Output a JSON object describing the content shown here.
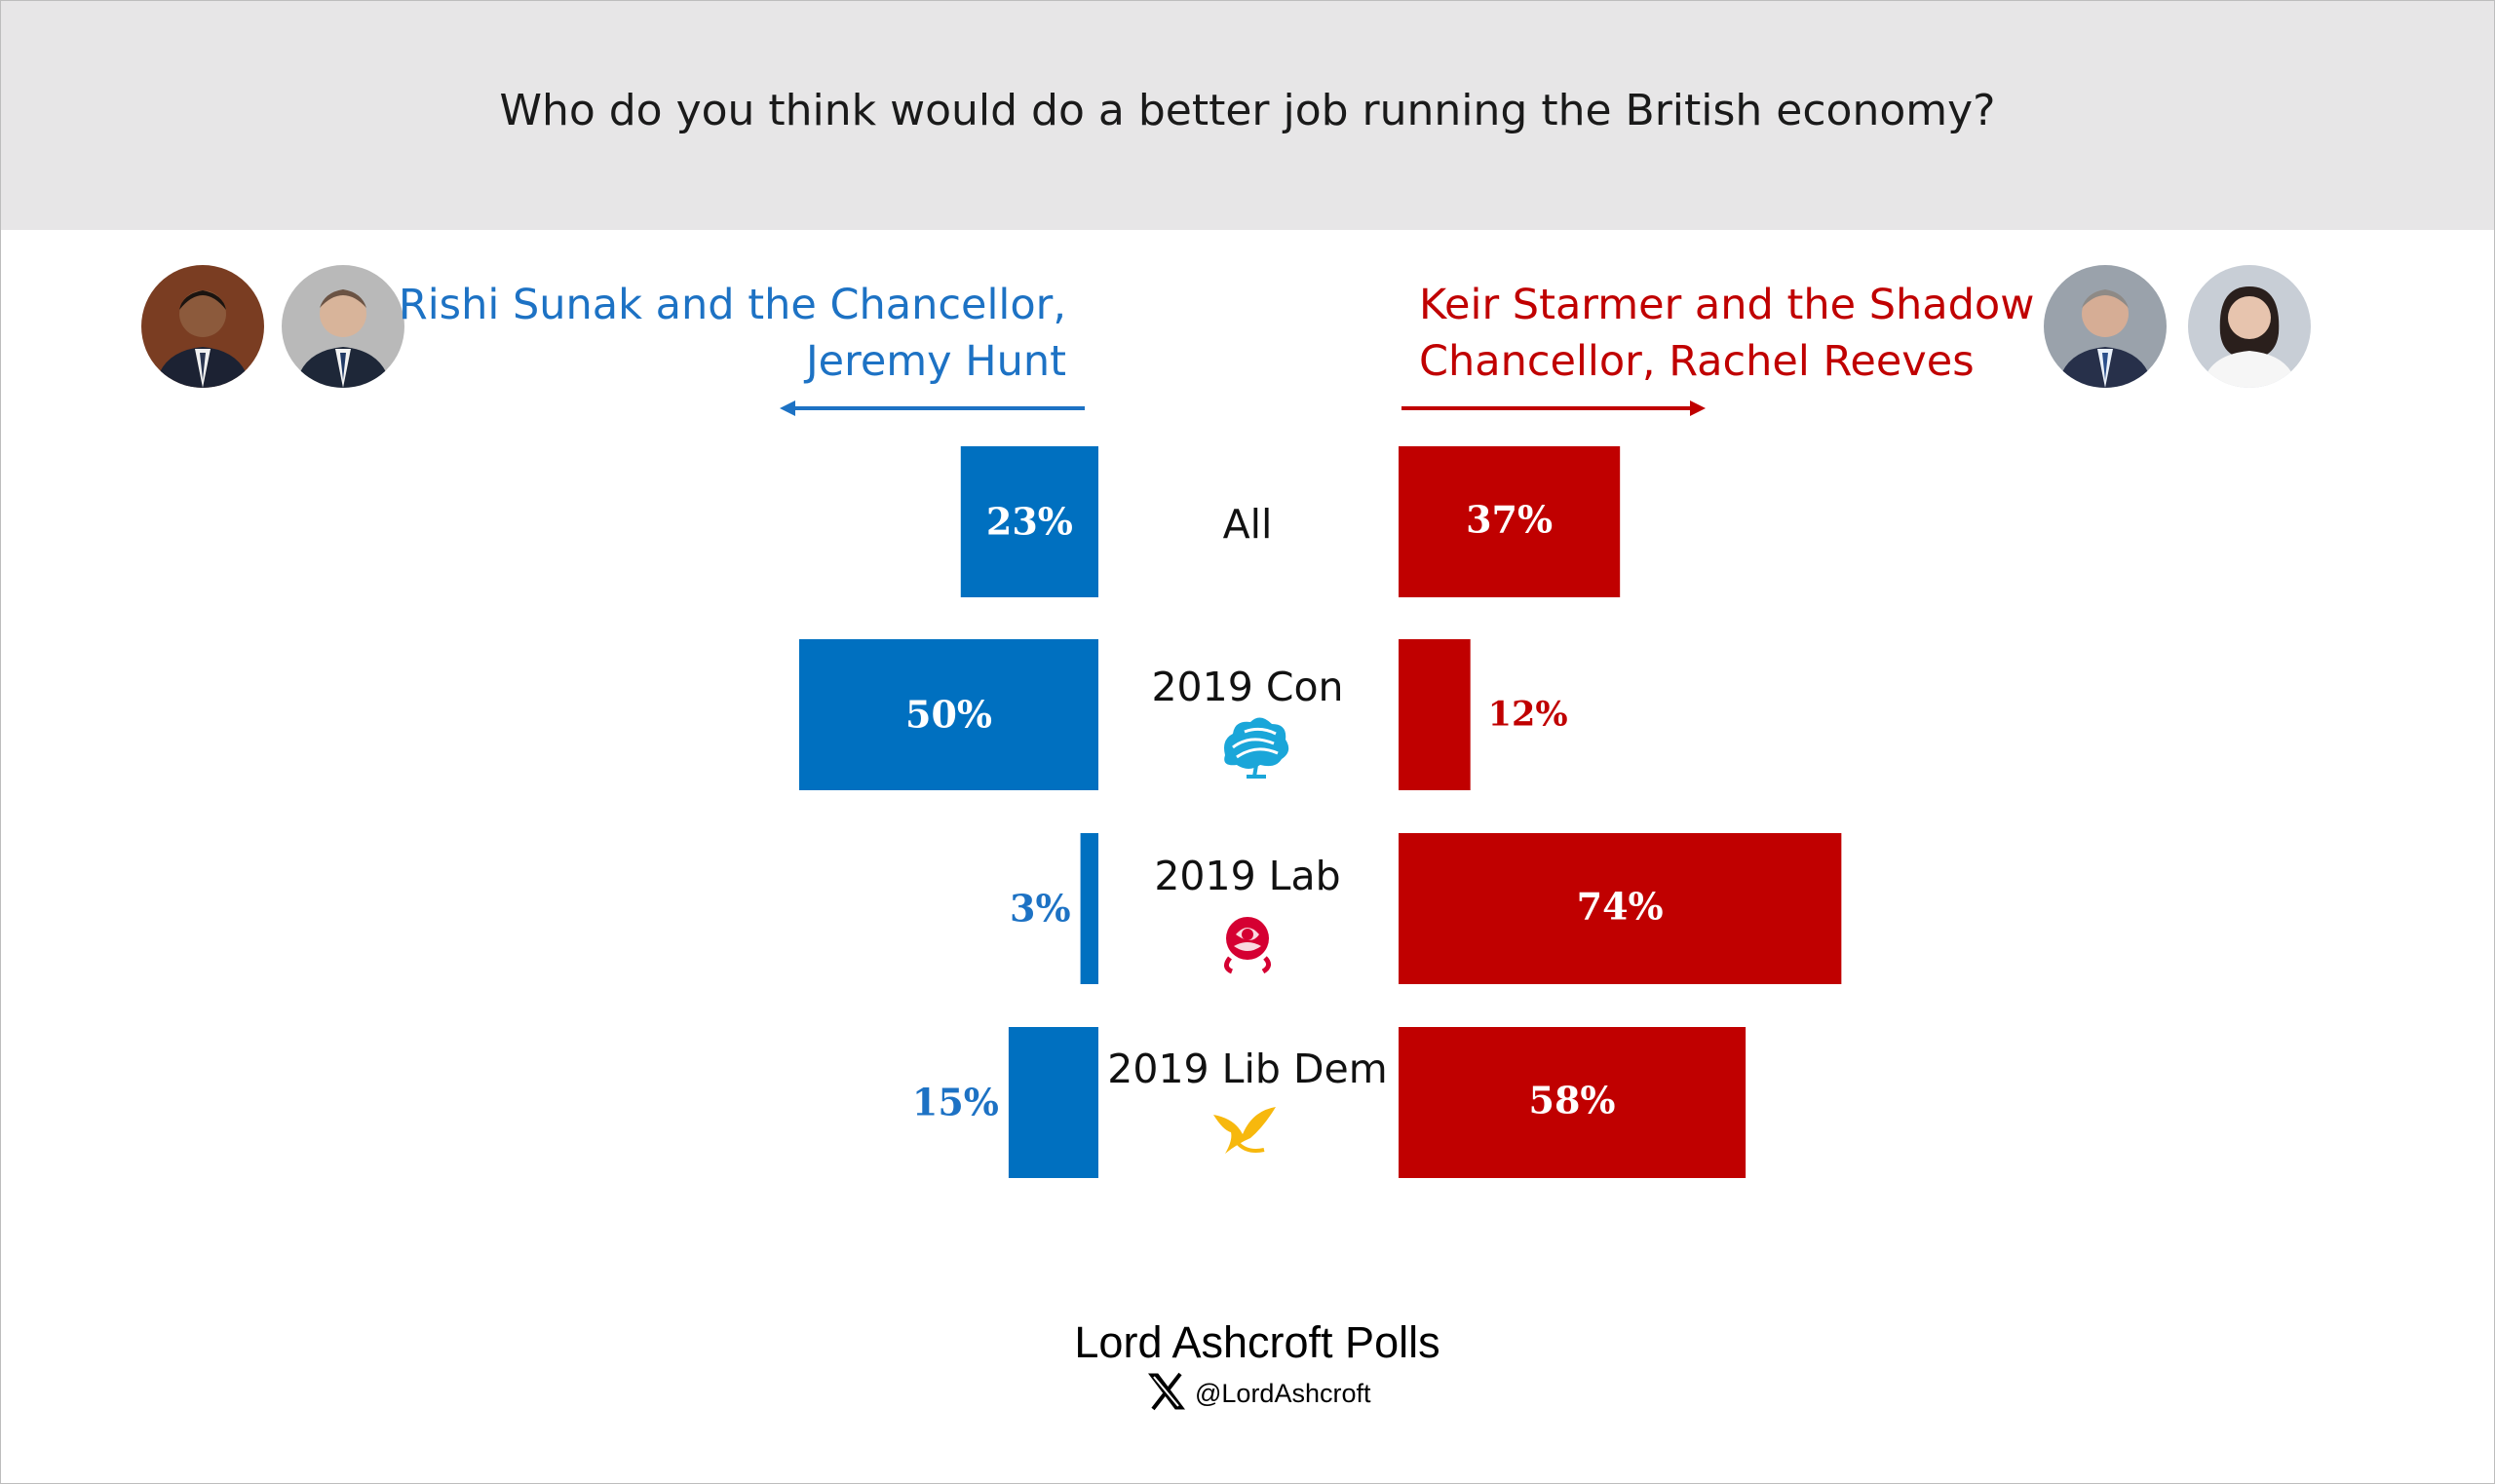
{
  "question": "Who do you think would do a better job running the British economy?",
  "left_label": {
    "line1": "Rishi Sunak and the Chancellor,",
    "line2": "Jeremy Hunt",
    "color": "#1d72c4"
  },
  "right_label": {
    "line1": "Keir Starmer and the Shadow",
    "line2": "Chancellor, Rachel Reeves",
    "color": "#c00000"
  },
  "portraits": {
    "left": [
      "avatar-rishi-sunak",
      "avatar-jeremy-hunt"
    ],
    "right": [
      "avatar-keir-starmer",
      "avatar-rachel-reeves"
    ]
  },
  "chart_data": {
    "type": "bar",
    "orientation": "horizontal-diverging",
    "title": "Who do you think would do a better job running the British economy?",
    "categories": [
      "All",
      "2019 Con",
      "2019 Lab",
      "2019 Lib Dem"
    ],
    "category_icons": [
      "",
      "conservative-tree-icon",
      "labour-rose-icon",
      "libdem-bird-icon"
    ],
    "series": [
      {
        "name": "Rishi Sunak and the Chancellor, Jeremy Hunt",
        "direction": "left",
        "color": "#0070c0",
        "values": [
          23,
          50,
          3,
          15
        ],
        "labels": [
          "23%",
          "50%",
          "3%",
          "15%"
        ]
      },
      {
        "name": "Keir Starmer and the Shadow Chancellor, Rachel Reeves",
        "direction": "right",
        "color": "#c00000",
        "values": [
          37,
          12,
          74,
          58
        ],
        "labels": [
          "37%",
          "12%",
          "74%",
          "58%"
        ]
      }
    ],
    "unit": "%",
    "xlim": [
      0,
      100
    ]
  },
  "footer": {
    "title": "Lord Ashcroft Polls",
    "handle": "@LordAshcroft",
    "icon": "x-logo-icon"
  }
}
